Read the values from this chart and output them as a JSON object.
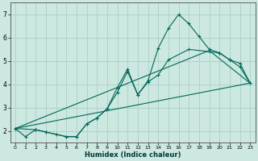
{
  "title": "",
  "xlabel": "Humidex (Indice chaleur)",
  "ylabel": "",
  "bg_color": "#cce8e0",
  "grid_color": "#aacfc8",
  "line_color": "#006858",
  "xlim": [
    -0.5,
    23.5
  ],
  "ylim": [
    1.5,
    7.5
  ],
  "yticks": [
    2,
    3,
    4,
    5,
    6,
    7
  ],
  "xticks": [
    0,
    1,
    2,
    3,
    4,
    5,
    6,
    7,
    8,
    9,
    10,
    11,
    12,
    13,
    14,
    15,
    16,
    17,
    18,
    19,
    20,
    21,
    22,
    23
  ],
  "lines": [
    {
      "x": [
        0,
        1,
        2,
        3,
        4,
        5,
        6,
        7,
        8,
        9,
        10,
        11,
        12,
        13,
        14,
        15,
        16,
        17,
        18,
        19,
        20,
        21,
        22,
        23
      ],
      "y": [
        2.1,
        1.75,
        2.05,
        1.95,
        1.85,
        1.75,
        1.75,
        2.3,
        2.55,
        2.95,
        3.85,
        4.65,
        3.55,
        4.15,
        5.55,
        6.4,
        7.0,
        6.6,
        6.05,
        5.5,
        5.35,
        5.05,
        4.75,
        4.05
      ],
      "marker": true
    },
    {
      "x": [
        0,
        2,
        3,
        5,
        6,
        7,
        8,
        9,
        10,
        11,
        12,
        13,
        14,
        15,
        17,
        19,
        20,
        21,
        22,
        23
      ],
      "y": [
        2.1,
        2.05,
        1.95,
        1.75,
        1.75,
        2.3,
        2.55,
        2.95,
        3.65,
        4.55,
        3.55,
        4.1,
        4.4,
        5.05,
        5.5,
        5.4,
        5.35,
        5.05,
        4.9,
        4.05
      ],
      "marker": true
    },
    {
      "x": [
        0,
        23
      ],
      "y": [
        2.1,
        4.05
      ],
      "marker": false
    },
    {
      "x": [
        0,
        19,
        23
      ],
      "y": [
        2.1,
        5.45,
        4.05
      ],
      "marker": false
    }
  ]
}
